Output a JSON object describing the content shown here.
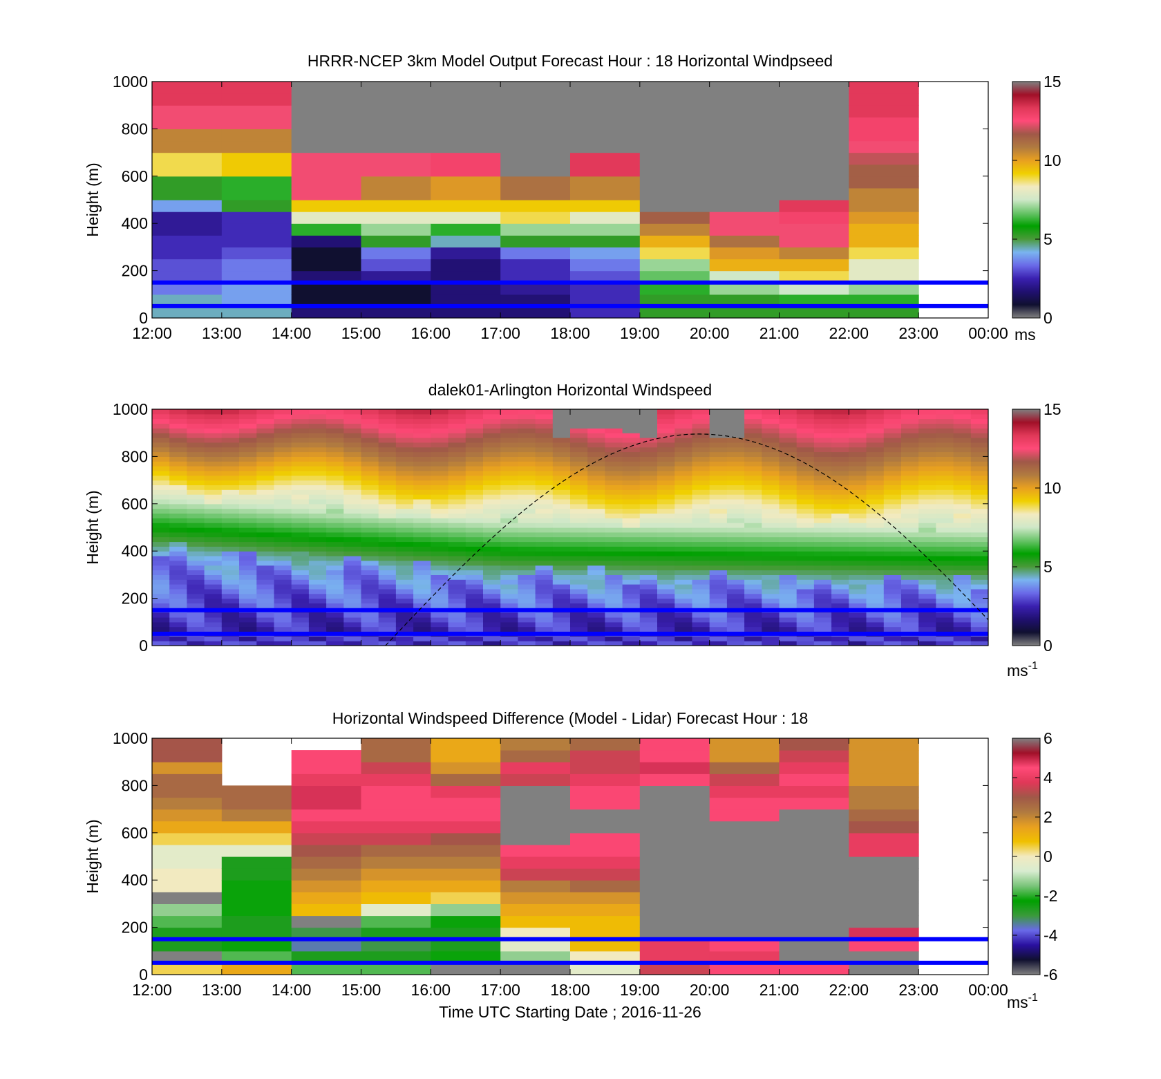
{
  "figure": {
    "xlabel": "Time UTC  Starting Date ; 2016-11-26"
  },
  "colors": {
    "missing": "#808080",
    "overlay_lines": "#0000ff",
    "windspeed_colormap": [
      "#808080",
      "#101030",
      "#201070",
      "#3a20b0",
      "#6a6ae8",
      "#7ab4f0",
      "#4a9a3a",
      "#00a000",
      "#6ac46a",
      "#cfe8c8",
      "#f2eac0",
      "#f0d000",
      "#e8a020",
      "#b07a40",
      "#a05848",
      "#ff4a78",
      "#e03858",
      "#a01028",
      "#808080"
    ],
    "difference_colormap": [
      "#808080",
      "#101030",
      "#2a10a0",
      "#6a6ae8",
      "#3a9a3a",
      "#00a000",
      "#7ac47a",
      "#d8ecd0",
      "#f2eac0",
      "#f0c000",
      "#e8a020",
      "#b07a40",
      "#a05848",
      "#e03858",
      "#ff4a78",
      "#a01028",
      "#808080"
    ]
  },
  "chart_data": [
    {
      "type": "heatmap",
      "title": "HRRR-NCEP 3km Model Output   Forecast Hour : 18 Horizontal Windpseed",
      "ylabel": "Height (m)",
      "xlabel": "",
      "xlim": [
        12,
        24
      ],
      "ylim": [
        0,
        1000
      ],
      "x_ticks": [
        "12:00",
        "13:00",
        "14:00",
        "15:00",
        "16:00",
        "17:00",
        "18:00",
        "19:00",
        "20:00",
        "21:00",
        "22:00",
        "23:00",
        "00:00"
      ],
      "y_ticks": [
        "0",
        "200",
        "400",
        "600",
        "800",
        "1000"
      ],
      "colorbar": {
        "min": 0,
        "max": 15,
        "ticks": [
          "0",
          "5",
          "10",
          "15"
        ],
        "label": "ms"
      },
      "time_bins_utc": [
        12,
        13,
        14,
        15,
        16,
        17,
        18,
        19,
        20,
        21,
        22
      ],
      "height_bins_m": [
        25,
        75,
        125,
        175,
        225,
        275,
        325,
        375,
        425,
        475,
        525,
        575,
        625,
        675,
        725,
        775,
        825,
        875,
        925,
        975
      ],
      "windspeed_ms_grid_by_hour": [
        [
          4,
          4,
          3,
          2.5,
          2.5,
          2,
          2,
          1.5,
          1.5,
          3.5,
          5,
          5,
          9,
          9,
          11,
          11,
          13,
          13,
          14,
          14
        ],
        [
          4,
          3.5,
          3.5,
          3,
          3,
          2.5,
          2,
          2,
          2,
          5,
          6,
          6,
          9.5,
          9.5,
          11,
          11,
          13,
          13,
          14,
          14
        ],
        [
          1,
          0,
          0,
          1,
          0,
          0,
          1,
          6,
          8,
          9.5,
          13,
          13,
          13,
          13,
          -1,
          -1,
          -1,
          -1,
          -1,
          -1
        ],
        [
          1,
          0,
          0,
          1.5,
          2.5,
          3,
          5,
          7,
          8,
          9.5,
          11,
          11,
          13,
          13,
          -1,
          -1,
          -1,
          -1,
          -1,
          -1
        ],
        [
          1,
          1,
          1,
          1,
          1,
          1.5,
          4,
          6,
          8,
          9.5,
          10.5,
          10.5,
          13.5,
          13.5,
          -1,
          -1,
          -1,
          -1,
          -1,
          -1
        ],
        [
          1,
          1,
          1.5,
          2,
          2,
          3,
          5,
          7,
          9,
          9.5,
          11.5,
          11.5,
          -1,
          -1,
          -1,
          -1,
          -1,
          -1,
          -1,
          -1
        ],
        [
          2,
          2,
          2,
          2.5,
          3,
          3.5,
          5,
          7,
          8,
          9.5,
          11,
          11,
          14,
          14,
          -1,
          -1,
          -1,
          -1,
          -1,
          -1
        ],
        [
          5,
          5,
          6,
          6.5,
          7,
          9,
          10,
          11,
          12,
          -1,
          -1,
          -1,
          -1,
          -1,
          -1,
          -1,
          -1,
          -1,
          -1,
          -1
        ],
        [
          5,
          5,
          7,
          7.5,
          10,
          10.5,
          11.5,
          13,
          13,
          -1,
          -1,
          -1,
          -1,
          -1,
          -1,
          -1,
          -1,
          -1,
          -1,
          -1
        ],
        [
          5,
          6,
          7.5,
          9,
          10,
          11,
          13,
          13,
          13.5,
          14,
          -1,
          -1,
          -1,
          -1,
          -1,
          -1,
          -1,
          -1,
          -1,
          -1
        ],
        [
          5,
          6,
          7,
          8,
          8,
          9,
          10,
          10,
          10.5,
          11,
          11,
          12,
          12,
          12.5,
          13,
          13.5,
          13.5,
          14,
          14,
          14
        ]
      ],
      "overlay_lines_height_m": [
        150,
        50
      ]
    },
    {
      "type": "heatmap",
      "title": "dalek01-Arlington  Horizontal Windspeed",
      "ylabel": "Height (m)",
      "xlabel": "",
      "xlim": [
        12,
        24
      ],
      "ylim": [
        0,
        1000
      ],
      "x_ticks": [],
      "y_ticks": [
        "0",
        "200",
        "400",
        "600",
        "800",
        "1000"
      ],
      "colorbar": {
        "min": 0,
        "max": 15,
        "ticks": [
          "0",
          "5",
          "10",
          "15"
        ],
        "label": "ms",
        "label_superscript": "-1"
      },
      "time_range_utc": [
        12,
        23.9
      ],
      "profile_time_step_hours": 0.25,
      "vertical_profile_description": "Speed increases with height; boundary layer top (transition from <4 to >8 m/s) descends from ~650 m at 12:00 to ~550 m after 17:00, with a low-level jet region above 800 m exceeding 12 m/s.",
      "overlay_lines_height_m": [
        150,
        50
      ],
      "overlay_curve": {
        "style": "dashed",
        "start_time_utc": 15.35,
        "peak_time_utc": 19.85,
        "peak_height_m": 895,
        "end_time_utc": 24
      }
    },
    {
      "type": "heatmap",
      "title": "Horizontal Windspeed Difference (Model - Lidar) Forecast Hour : 18",
      "ylabel": "Height (m)",
      "xlabel": "Time UTC  Starting Date ; 2016-11-26",
      "xlim": [
        12,
        24
      ],
      "ylim": [
        0,
        1000
      ],
      "x_ticks": [
        "12:00",
        "13:00",
        "14:00",
        "15:00",
        "16:00",
        "17:00",
        "18:00",
        "19:00",
        "20:00",
        "21:00",
        "22:00",
        "23:00",
        "00:00"
      ],
      "y_ticks": [
        "0",
        "200",
        "400",
        "600",
        "800",
        "1000"
      ],
      "colorbar": {
        "min": -6,
        "max": 6,
        "ticks": [
          "-6",
          "-4",
          "-2",
          "0",
          "2",
          "4",
          "6"
        ],
        "label": "ms",
        "label_superscript": "-1"
      },
      "time_bins_utc": [
        12,
        13,
        14,
        15,
        16,
        17,
        18,
        19,
        20,
        21,
        22
      ],
      "height_bins_m": [
        25,
        75,
        125,
        175,
        225,
        275,
        325,
        375,
        425,
        475,
        525,
        575,
        625,
        675,
        725,
        775,
        825,
        875,
        925,
        975
      ],
      "difference_ms_grid_by_hour": [
        [
          0.5,
          -1,
          -3,
          -3,
          -2,
          -1.5,
          -1,
          0,
          0,
          -0.5,
          -0.5,
          0.5,
          1.5,
          2,
          2.5,
          3,
          3,
          2,
          3.5,
          3.5
        ],
        [
          1.5,
          -2,
          -2.5,
          -3,
          -3,
          -2.5,
          -2.5,
          -2.5,
          -3,
          -3,
          -0.5,
          0.5,
          1.5,
          2.5,
          3,
          3,
          null,
          null,
          null,
          null
        ],
        [
          -2,
          -3,
          -4,
          -3.5,
          -1,
          1,
          1.5,
          2,
          2.5,
          3,
          3.5,
          4,
          4.5,
          5,
          5.5,
          5.5,
          4.5,
          5,
          5,
          null
        ],
        [
          -2,
          -3,
          -3.5,
          -3,
          -2,
          -0.5,
          1,
          1.5,
          2,
          2.5,
          3,
          4,
          4.5,
          5,
          5,
          5,
          4.5,
          4,
          3,
          3
        ],
        [
          -1,
          -2.5,
          -3,
          -3,
          -2.5,
          -1.5,
          0.5,
          1.5,
          2,
          2.5,
          3,
          3.5,
          4.5,
          5,
          5,
          4.5,
          3,
          2,
          1.5,
          1.5
        ],
        [
          -1,
          -1.5,
          -0.5,
          0,
          1,
          1.5,
          2,
          2.5,
          4,
          4.5,
          5,
          -1,
          -1,
          -1,
          -1,
          -1,
          4,
          4.5,
          3,
          2.5
        ],
        [
          -0.5,
          0,
          1,
          1,
          1,
          1.5,
          2,
          3,
          4,
          4.5,
          5,
          5,
          -1,
          -1,
          5,
          5,
          4.5,
          4,
          4,
          3
        ],
        [
          4,
          4.5,
          4.5,
          -1,
          -1,
          -1,
          -1,
          -1,
          -1,
          -1,
          -1,
          -1,
          -1,
          -1,
          -1,
          -1,
          5,
          5.5,
          5,
          5
        ],
        [
          5,
          4.5,
          5,
          -1,
          -1,
          -1,
          -1,
          -1,
          -1,
          -1,
          -1,
          -1,
          -1,
          5,
          5,
          4.5,
          4,
          3,
          2,
          2
        ],
        [
          5,
          -1,
          -1,
          -1,
          -1,
          -1,
          -1,
          -1,
          -1,
          -1,
          -1,
          -1,
          -1,
          -1,
          5,
          4.5,
          5,
          4.5,
          4,
          3.5
        ],
        [
          -1,
          -1,
          5,
          5.5,
          -1,
          -1,
          -1,
          -1,
          -1,
          -1,
          4.5,
          4.5,
          3.5,
          3,
          2.5,
          2.5,
          2,
          2,
          2,
          2
        ]
      ],
      "overlay_lines_height_m": [
        150,
        50
      ]
    }
  ]
}
